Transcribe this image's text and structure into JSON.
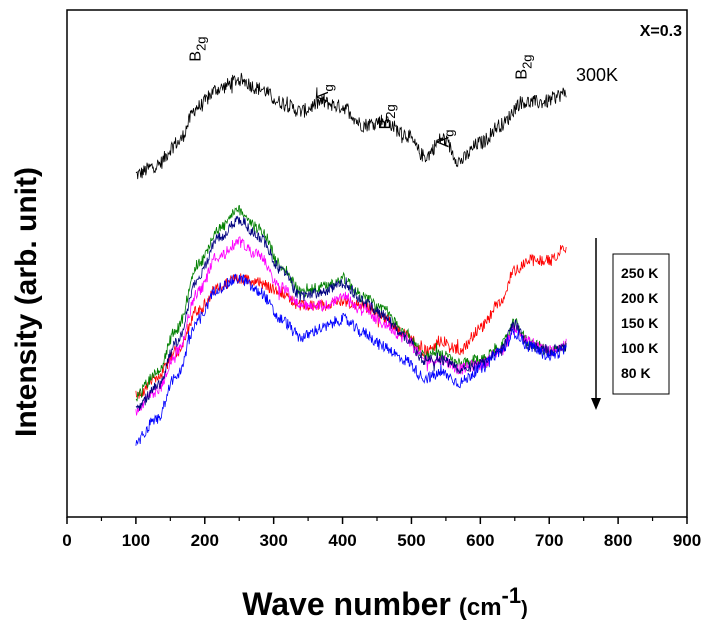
{
  "chart_data": {
    "type": "line",
    "title": "",
    "annotation": "X=0.3",
    "xlabel": "Wave number",
    "xlabel_unit": "(cm",
    "xlabel_exp": "-1",
    "xlabel_close": ")",
    "ylabel": "Intensity (arb. unit)",
    "xlim": [
      0,
      900
    ],
    "x_ticks": [
      0,
      100,
      200,
      300,
      400,
      500,
      600,
      700,
      800,
      900
    ],
    "x_minor_step": 50,
    "ylim": [
      0,
      100
    ],
    "y_ticks_shown": false,
    "top_curve_label": "300K",
    "peak_labels": [
      {
        "base": "B",
        "sub": "2g",
        "x": 185,
        "y": 97
      },
      {
        "base": "A",
        "sub": "g",
        "x": 370,
        "y": 88
      },
      {
        "base": "B",
        "sub": "2g",
        "x": 460,
        "y": 82
      },
      {
        "base": "A",
        "sub": "g",
        "x": 545,
        "y": 78
      },
      {
        "base": "B",
        "sub": "2g",
        "x": 658,
        "y": 93
      }
    ],
    "legend": {
      "entries": [
        "250 K",
        "200 K",
        "150 K",
        "100 K",
        "80 K"
      ],
      "arrow": "decreasing temperature (downward)"
    },
    "series": [
      {
        "name": "300K",
        "color": "#000000",
        "noise": 1.6,
        "x": [
          100,
          130,
          160,
          190,
          220,
          250,
          280,
          310,
          340,
          370,
          400,
          430,
          460,
          490,
          520,
          545,
          570,
          600,
          630,
          660,
          690,
          725
        ],
        "y": [
          72,
          74,
          79,
          87,
          91,
          93,
          91,
          88,
          86,
          88,
          87,
          83,
          84,
          81,
          76,
          80,
          75,
          79,
          83,
          88,
          88,
          90
        ]
      },
      {
        "name": "250 K",
        "color": "#ff0000",
        "noise": 1.3,
        "x": [
          100,
          130,
          160,
          190,
          220,
          250,
          280,
          310,
          340,
          370,
          400,
          430,
          460,
          490,
          520,
          545,
          570,
          600,
          630,
          650,
          670,
          700,
          725
        ],
        "y": [
          23,
          27,
          33,
          42,
          47,
          49,
          48,
          46,
          43,
          43,
          44,
          43,
          40,
          37,
          33,
          35,
          33,
          38,
          44,
          51,
          53,
          53,
          56
        ]
      },
      {
        "name": "200 K",
        "color": "#008000",
        "noise": 1.3,
        "x": [
          100,
          130,
          160,
          190,
          220,
          250,
          280,
          310,
          340,
          370,
          400,
          430,
          460,
          490,
          520,
          545,
          570,
          600,
          630,
          650,
          670,
          700,
          725
        ],
        "y": [
          23,
          28,
          38,
          52,
          60,
          64,
          60,
          52,
          46,
          47,
          49,
          45,
          42,
          37,
          32,
          32,
          30,
          31,
          34,
          39,
          35,
          33,
          34
        ]
      },
      {
        "name": "150 K",
        "color": "#ff00ff",
        "noise": 1.3,
        "x": [
          100,
          130,
          160,
          190,
          220,
          250,
          280,
          310,
          340,
          370,
          400,
          430,
          460,
          490,
          520,
          545,
          570,
          600,
          630,
          650,
          670,
          700,
          725
        ],
        "y": [
          20,
          24,
          33,
          46,
          54,
          57,
          54,
          47,
          43,
          43,
          45,
          42,
          39,
          36,
          31,
          31,
          29,
          30,
          33,
          38,
          35,
          33,
          34
        ]
      },
      {
        "name": "100 K",
        "color": "#000080",
        "noise": 1.2,
        "x": [
          100,
          130,
          160,
          190,
          220,
          250,
          280,
          310,
          340,
          370,
          400,
          430,
          460,
          490,
          520,
          545,
          570,
          600,
          630,
          650,
          670,
          700,
          725
        ],
        "y": [
          20,
          25,
          35,
          49,
          58,
          62,
          58,
          51,
          45,
          46,
          48,
          44,
          41,
          36,
          31,
          31,
          29,
          30,
          33,
          39,
          34,
          33,
          34
        ]
      },
      {
        "name": "80 K",
        "color": "#0000ff",
        "noise": 1.3,
        "x": [
          100,
          130,
          160,
          190,
          220,
          250,
          280,
          310,
          340,
          370,
          400,
          430,
          460,
          490,
          520,
          545,
          570,
          600,
          630,
          650,
          670,
          700,
          725
        ],
        "y": [
          13,
          18,
          28,
          40,
          47,
          49,
          46,
          40,
          36,
          38,
          40,
          37,
          34,
          31,
          27,
          28,
          26,
          29,
          33,
          37,
          34,
          32,
          33
        ]
      }
    ]
  }
}
